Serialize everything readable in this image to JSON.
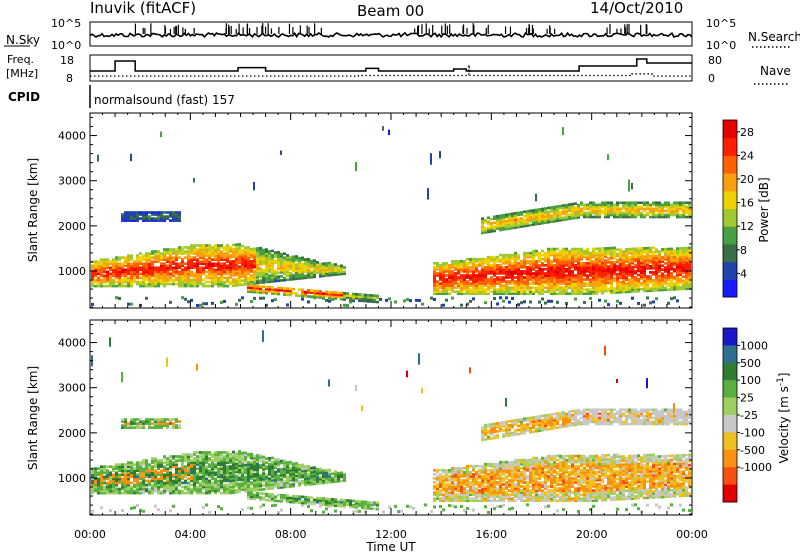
{
  "header": {
    "radar": "Inuvik (fitACF)",
    "beam": "Beam 00",
    "date": "14/Oct/2010"
  },
  "status_panels": {
    "nsky": {
      "label": "N.Sky",
      "ticks": [
        "10^5",
        "10^0"
      ]
    },
    "nsearch": {
      "label": "N.Search",
      "ticks": [
        "10^5",
        "10^0"
      ]
    },
    "freq": {
      "label_line1": "Freq.",
      "label_line2": "[MHz]",
      "ticks": [
        18,
        8
      ]
    },
    "nave": {
      "label": "Nave",
      "ticks": [
        80,
        0
      ]
    },
    "cpid": {
      "label": "CPID",
      "text": "normalsound (fast) 157"
    }
  },
  "chart_data": [
    {
      "type": "heatmap",
      "quantity": "power",
      "xlabel": "Time UT",
      "ylabel": "Slant Range [km]",
      "x_ticks": [
        "00:00",
        "04:00",
        "08:00",
        "12:00",
        "16:00",
        "20:00",
        "00:00"
      ],
      "y_ticks": [
        1000,
        2000,
        3000,
        4000
      ],
      "xlim_hours": [
        0,
        24
      ],
      "ylim_km": [
        180,
        4500
      ],
      "colorbar": {
        "label": "Power [dB]",
        "ticks": [
          4,
          8,
          12,
          16,
          20,
          24,
          28
        ],
        "range": [
          0,
          30
        ],
        "colors": [
          "#1a1aff",
          "#2244aa",
          "#3a6e46",
          "#48a040",
          "#a0c830",
          "#f0d000",
          "#f8a010",
          "#ff6000",
          "#ff2000",
          "#e80000"
        ]
      },
      "echo_bands": [
        {
          "name": "near-range echoes morning",
          "hours": [
            0,
            10.2
          ],
          "range_km": [
            650,
            1550
          ],
          "peak_power_db": 28
        },
        {
          "name": "descending trace",
          "hours": [
            6.2,
            11.5
          ],
          "range_km": [
            330,
            800
          ],
          "peak_power_db": 26
        },
        {
          "name": "near-range echoes evening",
          "hours": [
            13.6,
            24
          ],
          "range_km": [
            520,
            1750
          ],
          "peak_power_db": 28
        },
        {
          "name": "far-range echoes evening",
          "hours": [
            15.5,
            24
          ],
          "range_km": [
            1800,
            2700
          ],
          "peak_power_db": 22
        },
        {
          "name": "scattered high range",
          "hours": [
            1.5,
            3.5
          ],
          "range_km": [
            2100,
            4200
          ],
          "peak_power_db": 10
        }
      ]
    },
    {
      "type": "heatmap",
      "quantity": "velocity",
      "xlabel": "Time UT",
      "ylabel": "Slant Range [km]",
      "x_ticks": [
        "00:00",
        "04:00",
        "08:00",
        "12:00",
        "16:00",
        "20:00",
        "00:00"
      ],
      "y_ticks": [
        1000,
        2000,
        3000,
        4000
      ],
      "xlim_hours": [
        0,
        24
      ],
      "ylim_km": [
        180,
        4500
      ],
      "colorbar": {
        "label_main": "Velocity [m s",
        "label_sup": "-1",
        "label_end": "]",
        "ticks": [
          "1000",
          "500",
          "100",
          "25",
          "-25",
          "-100",
          "-500",
          "-1000"
        ],
        "colors": [
          "#1818c8",
          "#2e6e8e",
          "#2e7d32",
          "#58b040",
          "#9ed060",
          "#c8c8c8",
          "#f0c020",
          "#f89010",
          "#f85010",
          "#e00000"
        ]
      }
    }
  ]
}
